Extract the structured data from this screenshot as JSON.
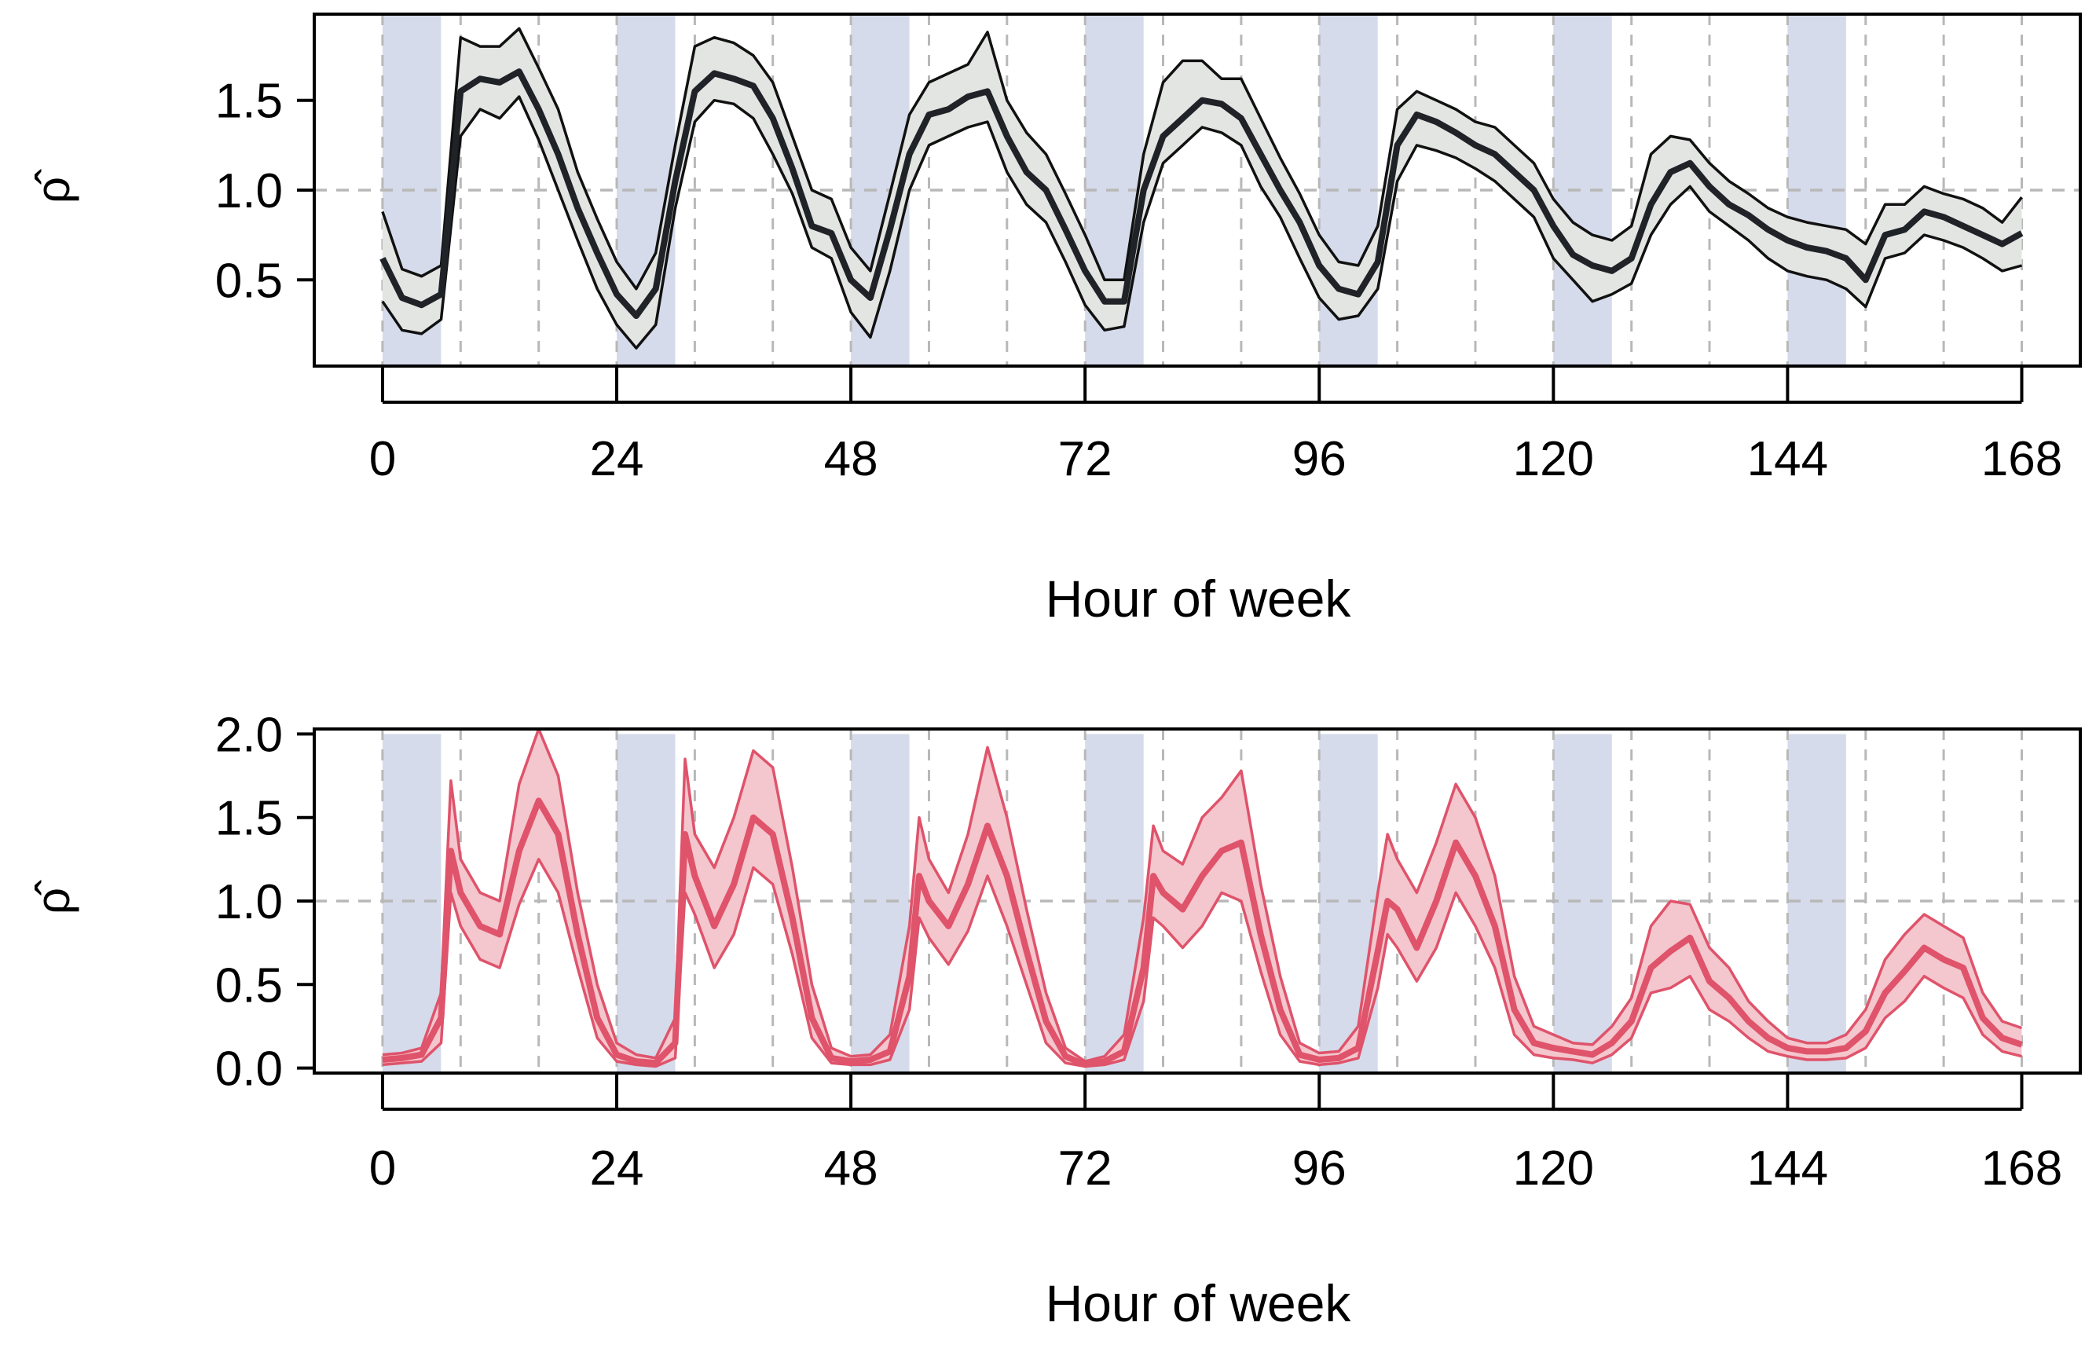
{
  "figure": {
    "colors": {
      "night_shading": "#d5dbeb",
      "grid": "#b8b8b8",
      "reference_line": "#b8b8b8",
      "frame": "#000000"
    }
  },
  "chart_data": [
    {
      "type": "line",
      "panel": "top",
      "xlabel": "Hour of week",
      "ylabel": "ρ̂",
      "xticks": [
        0,
        24,
        48,
        72,
        96,
        120,
        144,
        168
      ],
      "yticks": [
        0.5,
        1.0,
        1.5
      ],
      "ytick_labels": [
        "0.5",
        "1.0",
        "1.5"
      ],
      "xlim": [
        -7,
        174
      ],
      "ylim": [
        0.02,
        1.98
      ],
      "reference_y": 1.0,
      "grid_x": [
        0,
        8,
        16,
        24,
        32,
        40,
        48,
        56,
        64,
        72,
        80,
        88,
        96,
        104,
        112,
        120,
        128,
        136,
        144,
        152,
        160,
        168
      ],
      "night_bands": [
        [
          0,
          6
        ],
        [
          24,
          30
        ],
        [
          48,
          54
        ],
        [
          72,
          78
        ],
        [
          96,
          102
        ],
        [
          120,
          126
        ],
        [
          144,
          150
        ]
      ],
      "band_top": null,
      "colors": {
        "line": "#1f2328",
        "band": "#e3e5e3",
        "band_edge": "#111111"
      },
      "x": [
        0,
        2,
        4,
        6,
        8,
        10,
        12,
        14,
        16,
        18,
        20,
        22,
        24,
        26,
        28,
        30,
        32,
        34,
        36,
        38,
        40,
        42,
        44,
        46,
        48,
        50,
        52,
        54,
        56,
        58,
        60,
        62,
        64,
        66,
        68,
        70,
        72,
        74,
        76,
        78,
        80,
        82,
        84,
        86,
        88,
        90,
        92,
        94,
        96,
        98,
        100,
        102,
        104,
        106,
        108,
        110,
        112,
        114,
        116,
        118,
        120,
        122,
        124,
        126,
        128,
        130,
        132,
        134,
        136,
        138,
        140,
        142,
        144,
        146,
        148,
        150,
        152,
        154,
        156,
        158,
        160,
        162,
        164,
        166,
        168
      ],
      "series": [
        {
          "name": "estimate",
          "values": [
            0.62,
            0.4,
            0.36,
            0.42,
            1.55,
            1.62,
            1.6,
            1.66,
            1.45,
            1.2,
            0.9,
            0.65,
            0.42,
            0.3,
            0.45,
            1.05,
            1.55,
            1.65,
            1.62,
            1.58,
            1.4,
            1.12,
            0.8,
            0.76,
            0.5,
            0.4,
            0.78,
            1.2,
            1.42,
            1.45,
            1.52,
            1.55,
            1.3,
            1.1,
            1.0,
            0.78,
            0.55,
            0.38,
            0.38,
            1.0,
            1.3,
            1.4,
            1.5,
            1.48,
            1.4,
            1.2,
            1.0,
            0.82,
            0.58,
            0.45,
            0.42,
            0.6,
            1.25,
            1.42,
            1.38,
            1.32,
            1.25,
            1.2,
            1.1,
            1.0,
            0.8,
            0.64,
            0.58,
            0.55,
            0.62,
            0.92,
            1.1,
            1.15,
            1.02,
            0.92,
            0.86,
            0.78,
            0.72,
            0.68,
            0.66,
            0.62,
            0.5,
            0.75,
            0.78,
            0.88,
            0.85,
            0.8,
            0.75,
            0.7,
            0.76
          ]
        },
        {
          "name": "upper",
          "values": [
            0.88,
            0.56,
            0.52,
            0.58,
            1.85,
            1.8,
            1.8,
            1.9,
            1.68,
            1.45,
            1.1,
            0.84,
            0.6,
            0.45,
            0.65,
            1.25,
            1.8,
            1.85,
            1.82,
            1.75,
            1.6,
            1.3,
            1.0,
            0.95,
            0.68,
            0.55,
            0.98,
            1.42,
            1.6,
            1.65,
            1.7,
            1.88,
            1.5,
            1.32,
            1.2,
            0.98,
            0.75,
            0.5,
            0.5,
            1.2,
            1.6,
            1.72,
            1.72,
            1.62,
            1.62,
            1.4,
            1.18,
            0.98,
            0.75,
            0.6,
            0.58,
            0.8,
            1.45,
            1.55,
            1.5,
            1.45,
            1.38,
            1.35,
            1.25,
            1.15,
            0.95,
            0.82,
            0.75,
            0.72,
            0.8,
            1.2,
            1.3,
            1.28,
            1.15,
            1.05,
            0.98,
            0.9,
            0.85,
            0.82,
            0.8,
            0.78,
            0.7,
            0.92,
            0.92,
            1.02,
            0.98,
            0.95,
            0.9,
            0.82,
            0.96
          ]
        },
        {
          "name": "lower",
          "values": [
            0.38,
            0.22,
            0.2,
            0.28,
            1.3,
            1.45,
            1.4,
            1.52,
            1.28,
            1.0,
            0.72,
            0.45,
            0.25,
            0.12,
            0.25,
            0.9,
            1.38,
            1.5,
            1.48,
            1.4,
            1.2,
            0.98,
            0.68,
            0.62,
            0.32,
            0.18,
            0.55,
            1.0,
            1.25,
            1.3,
            1.35,
            1.38,
            1.1,
            0.92,
            0.82,
            0.6,
            0.36,
            0.22,
            0.24,
            0.82,
            1.15,
            1.25,
            1.35,
            1.32,
            1.25,
            1.02,
            0.85,
            0.62,
            0.4,
            0.28,
            0.3,
            0.45,
            1.05,
            1.25,
            1.22,
            1.18,
            1.12,
            1.05,
            0.95,
            0.85,
            0.62,
            0.5,
            0.38,
            0.42,
            0.48,
            0.75,
            0.92,
            1.02,
            0.88,
            0.8,
            0.72,
            0.62,
            0.55,
            0.52,
            0.5,
            0.45,
            0.35,
            0.62,
            0.65,
            0.75,
            0.72,
            0.68,
            0.62,
            0.55,
            0.58
          ]
        }
      ]
    },
    {
      "type": "line",
      "panel": "bottom",
      "xlabel": "Hour of week",
      "ylabel": "ρ̂",
      "xticks": [
        0,
        24,
        48,
        72,
        96,
        120,
        144,
        168
      ],
      "yticks": [
        0.0,
        0.5,
        1.0,
        1.5,
        2.0
      ],
      "ytick_labels": [
        "0.0",
        "0.5",
        "1.0",
        "1.5",
        "2.0"
      ],
      "xlim": [
        -7,
        174
      ],
      "ylim": [
        -0.03,
        2.03
      ],
      "reference_y": 1.0,
      "grid_x": [
        0,
        8,
        16,
        24,
        32,
        40,
        48,
        56,
        64,
        72,
        80,
        88,
        96,
        104,
        112,
        120,
        128,
        136,
        144,
        152,
        160,
        168
      ],
      "night_bands": [
        [
          0,
          6
        ],
        [
          24,
          30
        ],
        [
          48,
          54
        ],
        [
          72,
          78
        ],
        [
          96,
          102
        ],
        [
          120,
          126
        ],
        [
          144,
          150
        ]
      ],
      "band_top": 2.0,
      "colors": {
        "line": "#df536b",
        "band": "#f4c6cd",
        "band_edge": "#df536b"
      },
      "x": [
        0,
        2,
        4,
        6,
        7,
        8,
        10,
        12,
        14,
        16,
        18,
        20,
        22,
        24,
        26,
        28,
        30,
        31,
        32,
        34,
        36,
        38,
        40,
        42,
        44,
        46,
        48,
        50,
        52,
        54,
        55,
        56,
        58,
        60,
        62,
        64,
        66,
        68,
        70,
        72,
        74,
        76,
        78,
        79,
        80,
        82,
        84,
        86,
        88,
        90,
        92,
        94,
        96,
        98,
        100,
        102,
        103,
        104,
        106,
        108,
        110,
        112,
        114,
        116,
        118,
        120,
        122,
        124,
        126,
        128,
        130,
        132,
        134,
        136,
        138,
        140,
        142,
        144,
        146,
        148,
        150,
        152,
        154,
        156,
        158,
        160,
        162,
        164,
        166,
        168
      ],
      "series": [
        {
          "name": "estimate",
          "values": [
            0.05,
            0.06,
            0.08,
            0.3,
            1.3,
            1.05,
            0.85,
            0.8,
            1.3,
            1.6,
            1.4,
            0.8,
            0.3,
            0.08,
            0.04,
            0.03,
            0.15,
            1.4,
            1.15,
            0.85,
            1.1,
            1.5,
            1.4,
            0.9,
            0.3,
            0.06,
            0.04,
            0.05,
            0.1,
            0.55,
            1.15,
            1.0,
            0.85,
            1.1,
            1.45,
            1.15,
            0.7,
            0.28,
            0.07,
            0.02,
            0.04,
            0.1,
            0.6,
            1.15,
            1.05,
            0.95,
            1.15,
            1.3,
            1.35,
            0.8,
            0.35,
            0.08,
            0.05,
            0.06,
            0.12,
            0.7,
            1.0,
            0.95,
            0.72,
            1.0,
            1.35,
            1.15,
            0.85,
            0.35,
            0.15,
            0.12,
            0.1,
            0.08,
            0.15,
            0.28,
            0.6,
            0.7,
            0.78,
            0.52,
            0.42,
            0.28,
            0.18,
            0.12,
            0.1,
            0.1,
            0.12,
            0.22,
            0.45,
            0.58,
            0.72,
            0.65,
            0.6,
            0.3,
            0.18,
            0.14
          ]
        },
        {
          "name": "upper",
          "values": [
            0.08,
            0.09,
            0.12,
            0.45,
            1.72,
            1.25,
            1.05,
            1.0,
            1.7,
            2.03,
            1.75,
            1.05,
            0.5,
            0.15,
            0.08,
            0.06,
            0.3,
            1.85,
            1.4,
            1.2,
            1.5,
            1.9,
            1.8,
            1.2,
            0.5,
            0.12,
            0.07,
            0.08,
            0.2,
            0.85,
            1.5,
            1.25,
            1.05,
            1.4,
            1.92,
            1.5,
            0.95,
            0.45,
            0.12,
            0.04,
            0.07,
            0.2,
            0.9,
            1.45,
            1.3,
            1.22,
            1.5,
            1.62,
            1.78,
            1.1,
            0.55,
            0.15,
            0.09,
            0.1,
            0.25,
            1.05,
            1.4,
            1.25,
            1.05,
            1.35,
            1.7,
            1.5,
            1.15,
            0.55,
            0.25,
            0.2,
            0.15,
            0.14,
            0.25,
            0.42,
            0.85,
            1.0,
            0.98,
            0.72,
            0.6,
            0.4,
            0.28,
            0.18,
            0.15,
            0.15,
            0.2,
            0.35,
            0.65,
            0.8,
            0.92,
            0.85,
            0.78,
            0.45,
            0.28,
            0.24
          ]
        },
        {
          "name": "lower",
          "values": [
            0.02,
            0.03,
            0.04,
            0.15,
            1.05,
            0.85,
            0.65,
            0.6,
            0.98,
            1.25,
            1.05,
            0.6,
            0.18,
            0.04,
            0.02,
            0.01,
            0.06,
            1.05,
            0.92,
            0.6,
            0.8,
            1.2,
            1.1,
            0.68,
            0.18,
            0.03,
            0.02,
            0.02,
            0.05,
            0.35,
            0.9,
            0.78,
            0.62,
            0.82,
            1.15,
            0.85,
            0.5,
            0.15,
            0.03,
            0.01,
            0.02,
            0.05,
            0.4,
            0.9,
            0.85,
            0.72,
            0.85,
            1.05,
            1.0,
            0.58,
            0.2,
            0.04,
            0.02,
            0.03,
            0.06,
            0.48,
            0.8,
            0.72,
            0.52,
            0.72,
            1.05,
            0.85,
            0.6,
            0.2,
            0.08,
            0.06,
            0.05,
            0.03,
            0.08,
            0.18,
            0.45,
            0.48,
            0.55,
            0.35,
            0.28,
            0.18,
            0.1,
            0.07,
            0.05,
            0.05,
            0.06,
            0.12,
            0.3,
            0.4,
            0.55,
            0.48,
            0.42,
            0.2,
            0.1,
            0.07
          ]
        }
      ]
    }
  ]
}
